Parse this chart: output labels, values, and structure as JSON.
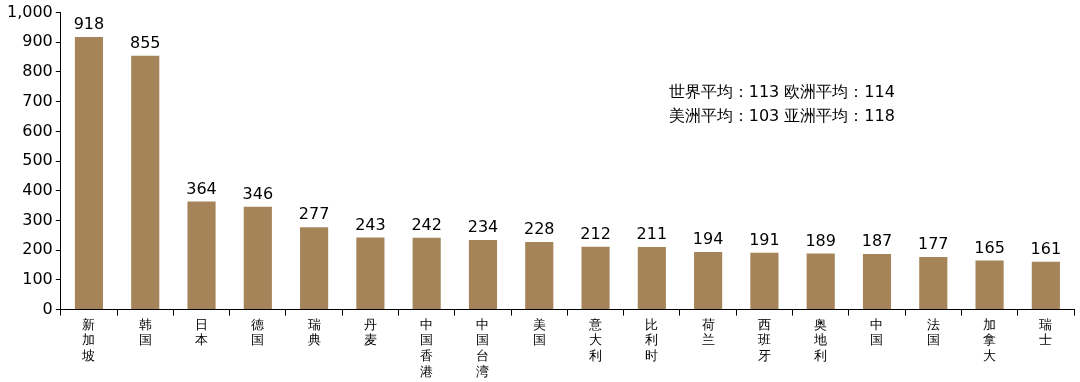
{
  "chart_data": {
    "type": "bar",
    "categories": [
      "新加坡",
      "韩国",
      "日本",
      "德国",
      "瑞典",
      "丹麦",
      "中国香港",
      "中国台湾",
      "美国",
      "意大利",
      "比利时",
      "荷兰",
      "西班牙",
      "奥地利",
      "中国",
      "法国",
      "加拿大",
      "瑞士"
    ],
    "values": [
      918,
      855,
      364,
      346,
      277,
      243,
      242,
      234,
      228,
      212,
      211,
      194,
      191,
      189,
      187,
      177,
      165,
      161
    ],
    "color": "#a5845a",
    "ylim": [
      0,
      1000
    ],
    "yticks": [
      0,
      100,
      200,
      300,
      400,
      500,
      600,
      700,
      800,
      900,
      {
        "value": 1000,
        "label": "1,000"
      }
    ],
    "grid": false,
    "legend": false,
    "data_labels": true,
    "annotations": [
      "世界平均：113 欧洲平均：114",
      "美洲平均：103 亚洲平均：118"
    ]
  }
}
